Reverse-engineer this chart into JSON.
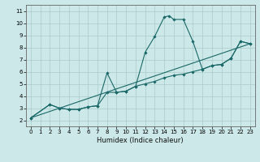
{
  "title": "",
  "xlabel": "Humidex (Indice chaleur)",
  "background_color": "#cce8e8",
  "grid_color": "#aacccc",
  "line_color": "#1a6868",
  "xlim": [
    -0.5,
    23.5
  ],
  "ylim": [
    1.5,
    11.5
  ],
  "xticks": [
    0,
    1,
    2,
    3,
    4,
    5,
    6,
    7,
    8,
    9,
    10,
    11,
    12,
    13,
    14,
    15,
    16,
    17,
    18,
    19,
    20,
    21,
    22,
    23
  ],
  "yticks": [
    2,
    3,
    4,
    5,
    6,
    7,
    8,
    9,
    10,
    11
  ],
  "series1": [
    [
      0,
      2.2
    ],
    [
      2,
      3.3
    ],
    [
      3,
      3.0
    ],
    [
      4,
      2.9
    ],
    [
      5,
      2.9
    ],
    [
      6,
      3.1
    ],
    [
      7,
      3.2
    ],
    [
      8,
      5.9
    ],
    [
      9,
      4.3
    ],
    [
      10,
      4.4
    ],
    [
      11,
      4.8
    ],
    [
      12,
      7.6
    ],
    [
      13,
      8.9
    ],
    [
      14,
      10.5
    ],
    [
      14.5,
      10.6
    ],
    [
      15,
      10.3
    ],
    [
      16,
      10.3
    ],
    [
      17,
      8.5
    ],
    [
      18,
      6.2
    ],
    [
      19,
      6.5
    ],
    [
      20,
      6.6
    ],
    [
      21,
      7.1
    ],
    [
      22,
      8.5
    ],
    [
      23,
      8.3
    ]
  ],
  "series2": [
    [
      0,
      2.2
    ],
    [
      2,
      3.3
    ],
    [
      3,
      3.0
    ],
    [
      4,
      2.9
    ],
    [
      5,
      2.9
    ],
    [
      6,
      3.1
    ],
    [
      7,
      3.2
    ],
    [
      8,
      4.3
    ],
    [
      9,
      4.3
    ],
    [
      10,
      4.4
    ],
    [
      11,
      4.8
    ],
    [
      12,
      5.0
    ],
    [
      13,
      5.2
    ],
    [
      14,
      5.5
    ],
    [
      15,
      5.7
    ],
    [
      16,
      5.8
    ],
    [
      17,
      6.0
    ],
    [
      18,
      6.2
    ],
    [
      19,
      6.5
    ],
    [
      20,
      6.6
    ],
    [
      21,
      7.1
    ],
    [
      22,
      8.5
    ],
    [
      23,
      8.3
    ]
  ],
  "series3": [
    [
      0,
      2.2
    ],
    [
      23,
      8.3
    ]
  ]
}
